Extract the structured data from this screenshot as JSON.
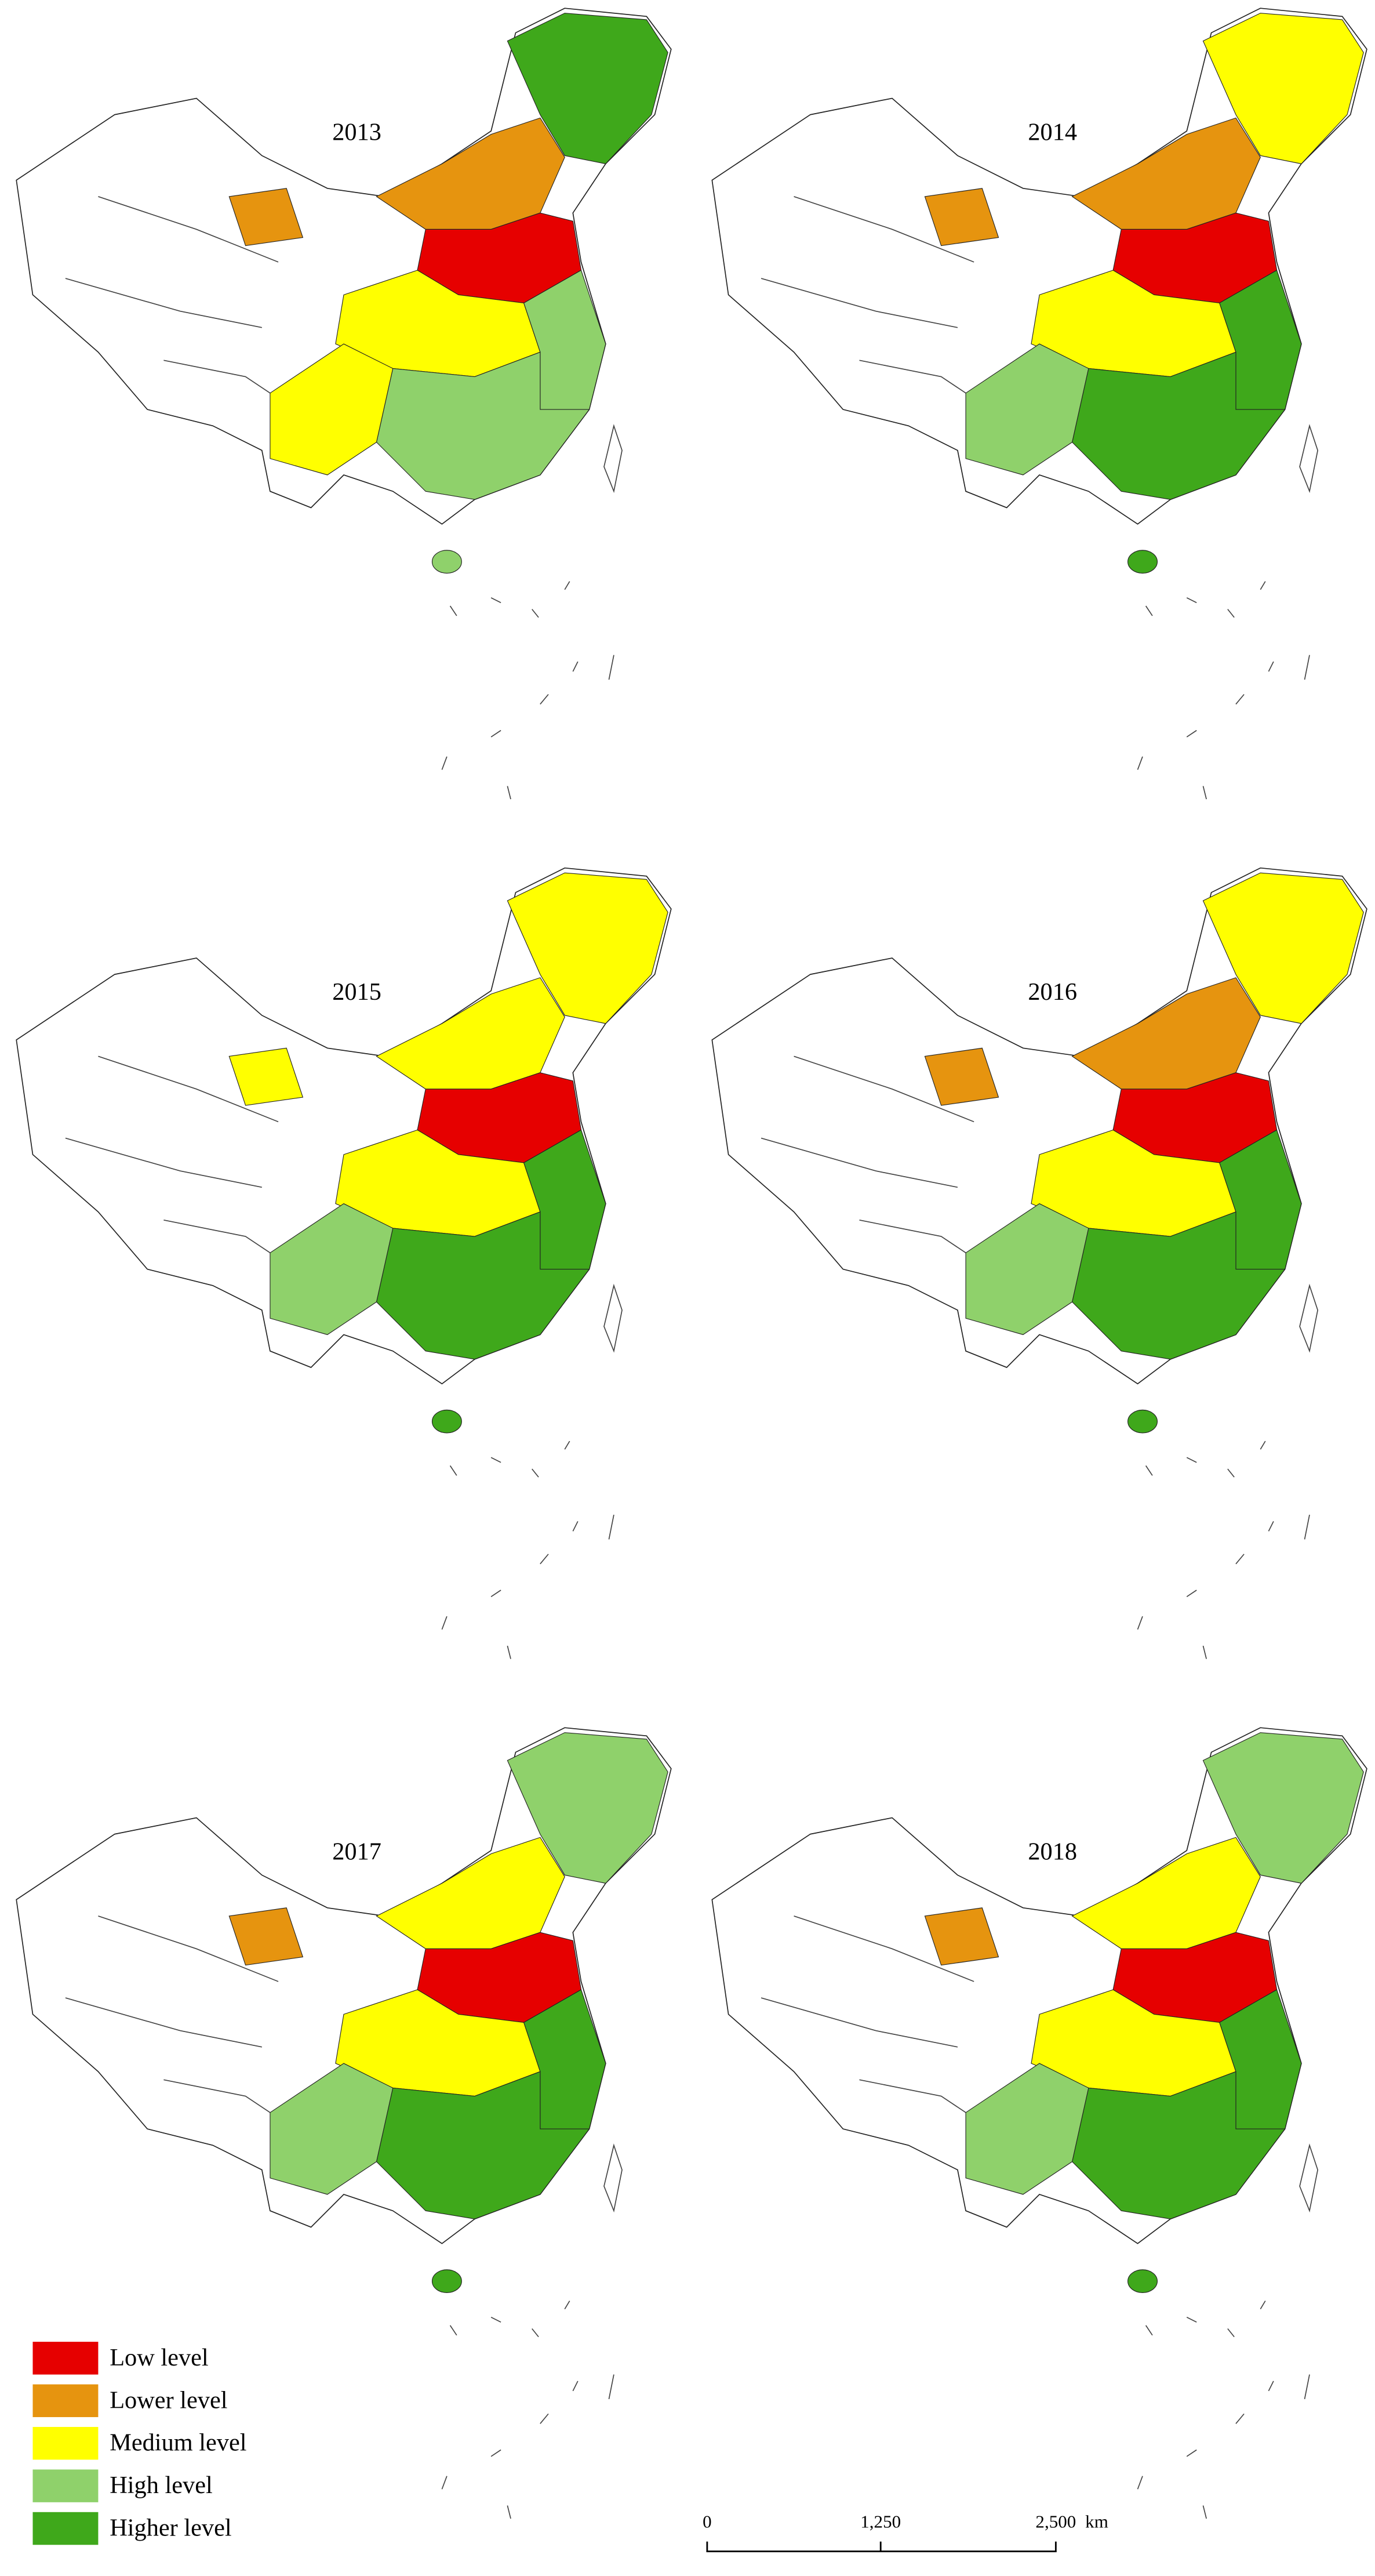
{
  "panels": [
    {
      "year": "2013"
    },
    {
      "year": "2014"
    },
    {
      "year": "2015"
    },
    {
      "year": "2016"
    },
    {
      "year": "2017"
    },
    {
      "year": "2018"
    }
  ],
  "legend": {
    "items": [
      {
        "label": "Low level",
        "color": "#e60000"
      },
      {
        "label": "Lower level",
        "color": "#e6940f"
      },
      {
        "label": "Medium level",
        "color": "#ffff00"
      },
      {
        "label": "High level",
        "color": "#8fd16b"
      },
      {
        "label": "Higher level",
        "color": "#3fa81b"
      }
    ]
  },
  "scale_bar": {
    "labels": [
      "0",
      "1,250",
      "2,500"
    ],
    "unit": "km"
  }
}
